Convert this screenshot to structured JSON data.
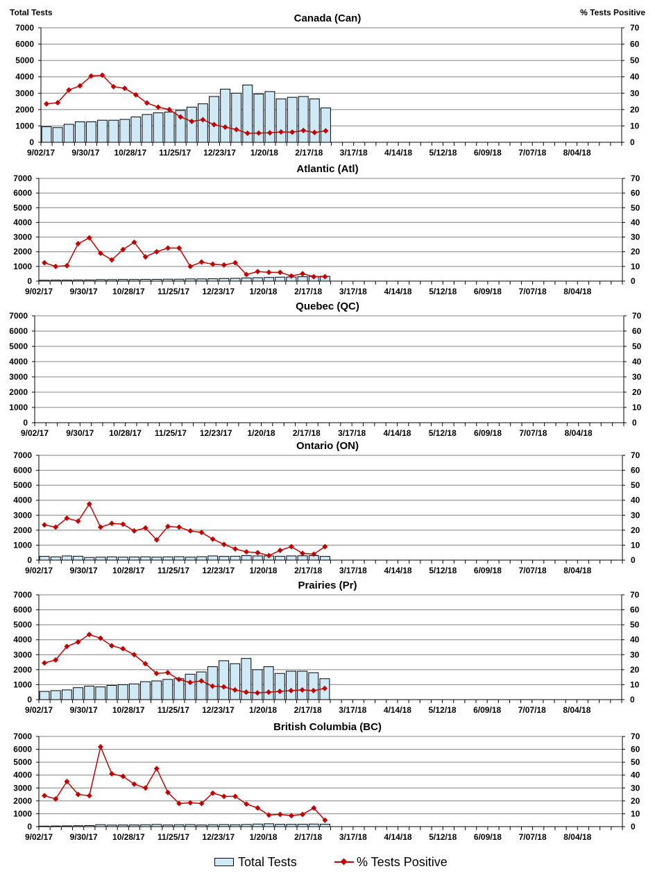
{
  "header": {
    "left_axis_label": "Total Tests",
    "right_axis_label": "% Tests Positive"
  },
  "legend": {
    "bar_label": "Total Tests",
    "line_label": "% Tests Positive"
  },
  "colors": {
    "bar_fill": "#cfe9f7",
    "bar_stroke": "#000000",
    "line": "#c00000",
    "grid": "#808080"
  },
  "chart_data": [
    {
      "type": "bar+line",
      "title": "Canada (Can)",
      "xlabel": "",
      "ylabel": "Total Tests",
      "y2label": "% Tests Positive",
      "ylim": [
        0,
        7000
      ],
      "y2lim": [
        0,
        70
      ],
      "yticks": [
        0,
        1000,
        2000,
        3000,
        4000,
        5000,
        6000,
        7000
      ],
      "y2ticks": [
        0,
        10,
        20,
        30,
        40,
        50,
        60,
        70
      ],
      "x_tick_labels": [
        "9/02/17",
        "9/30/17",
        "10/28/17",
        "11/25/17",
        "12/23/17",
        "1/20/18",
        "2/17/18",
        "3/17/18",
        "4/14/18",
        "5/12/18",
        "6/09/18",
        "7/07/18",
        "8/04/18"
      ],
      "n_weeks": 52,
      "series": [
        {
          "name": "Total Tests",
          "type": "bar",
          "values": [
            950,
            900,
            1100,
            1250,
            1250,
            1350,
            1350,
            1400,
            1550,
            1700,
            1800,
            1850,
            1950,
            2150,
            2350,
            2800,
            3250,
            3000,
            3500,
            2950,
            3100,
            2650,
            2750,
            2800,
            2650,
            2100
          ]
        },
        {
          "name": "% Tests Positive",
          "type": "line",
          "values": [
            23.5,
            24.2,
            32,
            34.5,
            40.5,
            41,
            34,
            33,
            29,
            24,
            21.5,
            20,
            15.5,
            12.8,
            13.8,
            10.8,
            9.3,
            7.8,
            5.5,
            5.6,
            5.8,
            6.3,
            6.2,
            7.2,
            6,
            7
          ]
        }
      ]
    },
    {
      "type": "bar+line",
      "title": "Atlantic (Atl)",
      "xlabel": "",
      "ylabel": "Total Tests",
      "y2label": "% Tests Positive",
      "ylim": [
        0,
        7000
      ],
      "y2lim": [
        0,
        70
      ],
      "yticks": [
        0,
        1000,
        2000,
        3000,
        4000,
        5000,
        6000,
        7000
      ],
      "y2ticks": [
        0,
        10,
        20,
        30,
        40,
        50,
        60,
        70
      ],
      "x_tick_labels": [
        "9/02/17",
        "9/30/17",
        "10/28/17",
        "11/25/17",
        "12/23/17",
        "1/20/18",
        "2/17/18",
        "3/17/18",
        "4/14/18",
        "5/12/18",
        "6/09/18",
        "7/07/18",
        "8/04/18"
      ],
      "n_weeks": 52,
      "series": [
        {
          "name": "Total Tests",
          "type": "bar",
          "values": [
            60,
            70,
            70,
            80,
            80,
            100,
            100,
            110,
            110,
            120,
            120,
            130,
            130,
            150,
            150,
            160,
            180,
            190,
            210,
            230,
            250,
            270,
            280,
            300,
            320,
            330
          ]
        },
        {
          "name": "% Tests Positive",
          "type": "line",
          "values": [
            12.5,
            10,
            10.5,
            25.5,
            29.5,
            19,
            14.5,
            21.5,
            26.5,
            16.5,
            20,
            22.5,
            22.5,
            10,
            13,
            11.5,
            11,
            12.5,
            4.5,
            6.5,
            6,
            6,
            3.5,
            5,
            3,
            3
          ]
        }
      ]
    },
    {
      "type": "bar+line",
      "title": "Quebec (QC)",
      "xlabel": "",
      "ylabel": "Total Tests",
      "y2label": "% Tests Positive",
      "ylim": [
        0,
        7000
      ],
      "y2lim": [
        0,
        70
      ],
      "yticks": [
        0,
        1000,
        2000,
        3000,
        4000,
        5000,
        6000,
        7000
      ],
      "y2ticks": [
        0,
        10,
        20,
        30,
        40,
        50,
        60,
        70
      ],
      "x_tick_labels": [
        "9/02/17",
        "9/30/17",
        "10/28/17",
        "11/25/17",
        "12/23/17",
        "1/20/18",
        "2/17/18",
        "3/17/18",
        "4/14/18",
        "5/12/18",
        "6/09/18",
        "7/07/18",
        "8/04/18"
      ],
      "n_weeks": 52,
      "series": [
        {
          "name": "Total Tests",
          "type": "bar",
          "values": []
        },
        {
          "name": "% Tests Positive",
          "type": "line",
          "values": []
        }
      ]
    },
    {
      "type": "bar+line",
      "title": "Ontario (ON)",
      "xlabel": "",
      "ylabel": "Total Tests",
      "y2label": "% Tests Positive",
      "ylim": [
        0,
        7000
      ],
      "y2lim": [
        0,
        70
      ],
      "yticks": [
        0,
        1000,
        2000,
        3000,
        4000,
        5000,
        6000,
        7000
      ],
      "y2ticks": [
        0,
        10,
        20,
        30,
        40,
        50,
        60,
        70
      ],
      "x_tick_labels": [
        "9/02/17",
        "9/30/17",
        "10/28/17",
        "11/25/17",
        "12/23/17",
        "1/20/18",
        "2/17/18",
        "3/17/18",
        "4/14/18",
        "5/12/18",
        "6/09/18",
        "7/07/18",
        "8/04/18"
      ],
      "n_weeks": 52,
      "series": [
        {
          "name": "Total Tests",
          "type": "bar",
          "values": [
            250,
            220,
            280,
            260,
            180,
            200,
            220,
            200,
            210,
            220,
            200,
            220,
            230,
            200,
            230,
            280,
            250,
            260,
            300,
            280,
            280,
            260,
            280,
            290,
            300,
            250
          ]
        },
        {
          "name": "% Tests Positive",
          "type": "line",
          "values": [
            23.5,
            22,
            28,
            26,
            37.5,
            22,
            24.5,
            24,
            19.5,
            21.5,
            13.5,
            22.5,
            22,
            19.5,
            18.5,
            14,
            10.5,
            7.5,
            5.5,
            5,
            3,
            6.5,
            9,
            4.5,
            4,
            9
          ]
        }
      ]
    },
    {
      "type": "bar+line",
      "title": "Prairies (Pr)",
      "xlabel": "",
      "ylabel": "Total Tests",
      "y2label": "% Tests Positive",
      "ylim": [
        0,
        7000
      ],
      "y2lim": [
        0,
        70
      ],
      "yticks": [
        0,
        1000,
        2000,
        3000,
        4000,
        5000,
        6000,
        7000
      ],
      "y2ticks": [
        0,
        10,
        20,
        30,
        40,
        50,
        60,
        70
      ],
      "x_tick_labels": [
        "9/02/17",
        "9/30/17",
        "10/28/17",
        "11/25/17",
        "12/23/17",
        "1/20/18",
        "2/17/18",
        "3/17/18",
        "4/14/18",
        "5/12/18",
        "6/09/18",
        "7/07/18",
        "8/04/18"
      ],
      "n_weeks": 52,
      "series": [
        {
          "name": "Total Tests",
          "type": "bar",
          "values": [
            550,
            600,
            650,
            800,
            900,
            850,
            950,
            1000,
            1050,
            1200,
            1250,
            1350,
            1400,
            1700,
            1850,
            2200,
            2600,
            2400,
            2750,
            2000,
            2200,
            1750,
            1900,
            1900,
            1800,
            1400
          ]
        },
        {
          "name": "% Tests Positive",
          "type": "line",
          "values": [
            24.5,
            26.5,
            35.5,
            38.5,
            43.5,
            41,
            36,
            34,
            30,
            24,
            17.5,
            18,
            13.5,
            11.5,
            12.5,
            9,
            8.5,
            6.5,
            5,
            4.5,
            5,
            5.5,
            6,
            6.5,
            6,
            7.5
          ]
        }
      ]
    },
    {
      "type": "bar+line",
      "title": "British Columbia (BC)",
      "xlabel": "",
      "ylabel": "Total Tests",
      "y2label": "% Tests Positive",
      "ylim": [
        0,
        7000
      ],
      "y2lim": [
        0,
        70
      ],
      "yticks": [
        0,
        1000,
        2000,
        3000,
        4000,
        5000,
        6000,
        7000
      ],
      "y2ticks": [
        0,
        10,
        20,
        30,
        40,
        50,
        60,
        70
      ],
      "x_tick_labels": [
        "9/02/17",
        "9/30/17",
        "10/28/17",
        "11/25/17",
        "12/23/17",
        "1/20/18",
        "2/17/18",
        "3/17/18",
        "4/14/18",
        "5/12/18",
        "6/09/18",
        "7/07/18",
        "8/04/18"
      ],
      "n_weeks": 52,
      "series": [
        {
          "name": "Total Tests",
          "type": "bar",
          "values": [
            40,
            50,
            60,
            70,
            80,
            150,
            120,
            130,
            130,
            150,
            170,
            130,
            150,
            160,
            130,
            150,
            160,
            150,
            170,
            200,
            220,
            180,
            180,
            190,
            200,
            190
          ]
        },
        {
          "name": "% Tests Positive",
          "type": "line",
          "values": [
            24,
            21.5,
            35,
            25,
            24,
            62,
            41,
            39,
            33,
            30,
            45,
            26.5,
            18,
            18.5,
            18,
            26,
            23.5,
            23.5,
            17.5,
            14.5,
            9,
            9.5,
            8.5,
            9.5,
            14.5,
            5
          ]
        }
      ]
    }
  ]
}
